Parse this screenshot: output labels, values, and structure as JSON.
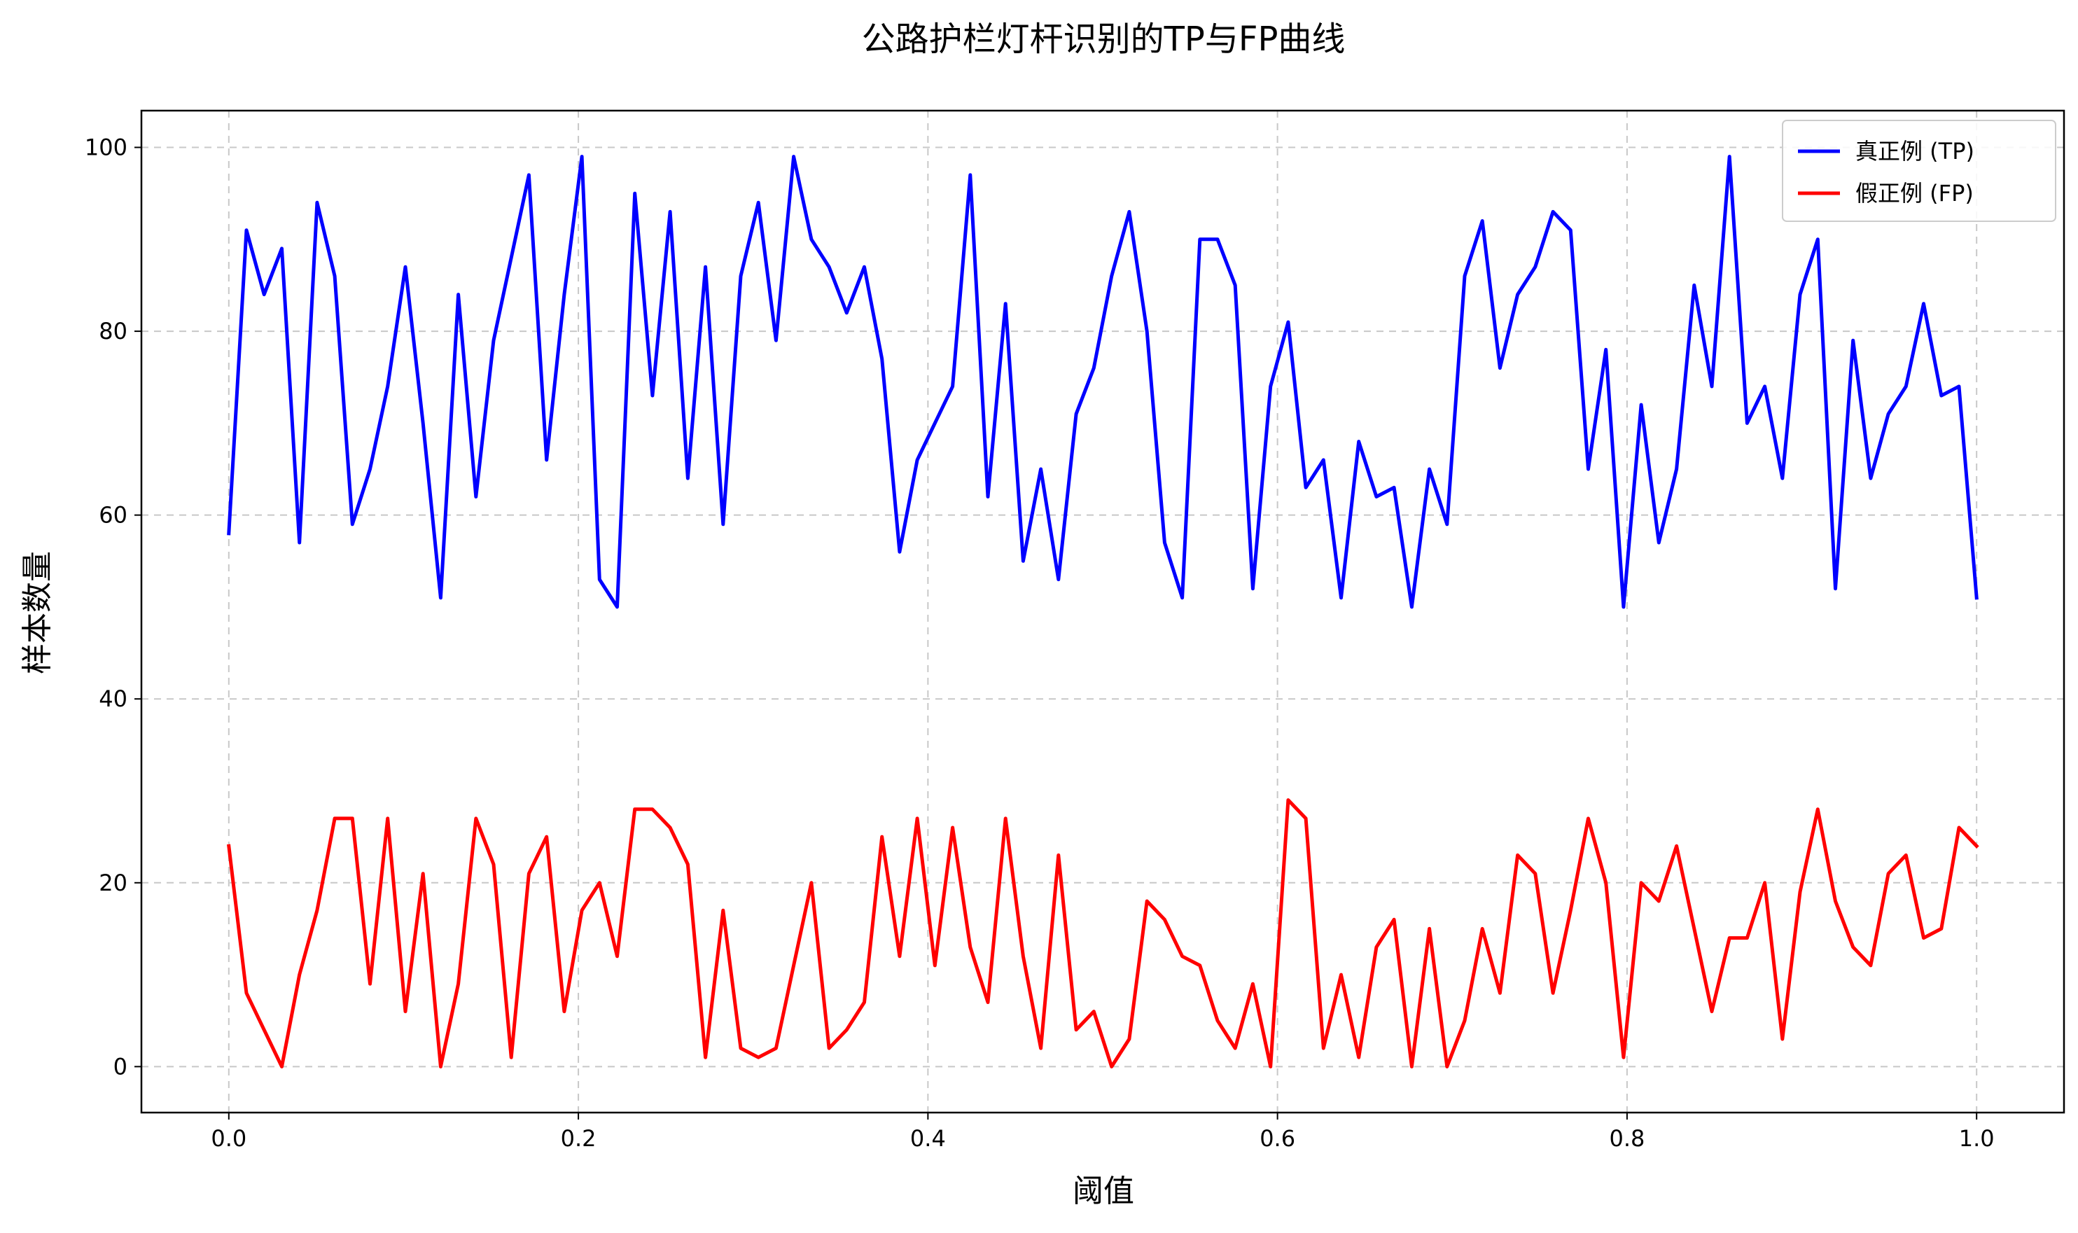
{
  "chart_data": {
    "type": "line",
    "title": "公路护栏灯杆识别的TP与FP曲线",
    "xlabel": "阈值",
    "ylabel": "样本数量",
    "xlim": [
      -0.05,
      1.05
    ],
    "ylim": [
      -5,
      104
    ],
    "xticks": [
      0.0,
      0.2,
      0.4,
      0.6,
      0.8,
      1.0
    ],
    "xtick_labels": [
      "0.0",
      "0.2",
      "0.4",
      "0.6",
      "0.8",
      "1.0"
    ],
    "yticks": [
      0,
      20,
      40,
      60,
      80,
      100
    ],
    "ytick_labels": [
      "0",
      "20",
      "40",
      "60",
      "80",
      "100"
    ],
    "grid": true,
    "legend_position": "top-right",
    "x": [
      0.0,
      0.0101,
      0.0202,
      0.0303,
      0.0404,
      0.0505,
      0.0606,
      0.0707,
      0.0808,
      0.0909,
      0.101,
      0.1111,
      0.1212,
      0.1313,
      0.1414,
      0.1515,
      0.1616,
      0.1717,
      0.1818,
      0.1919,
      0.202,
      0.2121,
      0.2222,
      0.2323,
      0.2424,
      0.2525,
      0.2626,
      0.2727,
      0.2828,
      0.2929,
      0.303,
      0.3131,
      0.3232,
      0.3333,
      0.3434,
      0.3535,
      0.3636,
      0.3737,
      0.3838,
      0.3939,
      0.404,
      0.4141,
      0.4242,
      0.4343,
      0.4444,
      0.4545,
      0.4646,
      0.4747,
      0.4848,
      0.4949,
      0.5051,
      0.5152,
      0.5253,
      0.5354,
      0.5455,
      0.5556,
      0.5657,
      0.5758,
      0.5859,
      0.596,
      0.6061,
      0.6162,
      0.6263,
      0.6364,
      0.6465,
      0.6566,
      0.6667,
      0.6768,
      0.6869,
      0.697,
      0.7071,
      0.7172,
      0.7273,
      0.7374,
      0.7475,
      0.7576,
      0.7677,
      0.7778,
      0.7879,
      0.798,
      0.8081,
      0.8182,
      0.8283,
      0.8384,
      0.8485,
      0.8586,
      0.8687,
      0.8788,
      0.8889,
      0.899,
      0.9091,
      0.9192,
      0.9293,
      0.9394,
      0.9495,
      0.9596,
      0.9697,
      0.9798,
      0.9899,
      1.0
    ],
    "series": [
      {
        "name": "真正例 (TP)",
        "color": "#0000ff",
        "values": [
          58,
          91,
          84,
          89,
          57,
          94,
          86,
          59,
          65,
          74,
          87,
          70,
          51,
          84,
          62,
          79,
          88,
          97,
          66,
          84,
          99,
          53,
          50,
          95,
          73,
          93,
          64,
          87,
          59,
          86,
          94,
          79,
          99,
          90,
          87,
          82,
          87,
          77,
          56,
          66,
          70,
          74,
          97,
          62,
          83,
          55,
          65,
          53,
          71,
          76,
          86,
          93,
          80,
          57,
          51,
          90,
          90,
          85,
          52,
          74,
          81,
          63,
          66,
          51,
          68,
          62,
          63,
          50,
          65,
          59,
          86,
          92,
          76,
          84,
          87,
          93,
          91,
          65,
          78,
          50,
          72,
          57,
          65,
          85,
          74,
          99,
          70,
          74,
          64,
          84,
          90,
          52,
          79,
          64,
          71,
          74,
          83,
          73,
          74,
          51
        ]
      },
      {
        "name": "假正例 (FP)",
        "color": "#ff0000",
        "values": [
          24,
          8,
          4,
          0,
          10,
          17,
          27,
          27,
          9,
          27,
          6,
          21,
          0,
          9,
          27,
          22,
          1,
          21,
          25,
          6,
          17,
          20,
          12,
          28,
          28,
          26,
          22,
          1,
          17,
          2,
          1,
          2,
          11,
          20,
          2,
          4,
          7,
          25,
          12,
          27,
          11,
          26,
          13,
          7,
          27,
          12,
          2,
          23,
          4,
          6,
          0,
          3,
          18,
          16,
          12,
          11,
          5,
          2,
          9,
          0,
          29,
          27,
          2,
          10,
          1,
          13,
          16,
          0,
          15,
          0,
          5,
          15,
          8,
          23,
          21,
          8,
          17,
          27,
          20,
          1,
          20,
          18,
          24,
          15,
          6,
          14,
          14,
          20,
          3,
          19,
          28,
          18,
          13,
          11,
          21,
          23,
          14,
          15,
          26,
          24
        ]
      }
    ]
  }
}
